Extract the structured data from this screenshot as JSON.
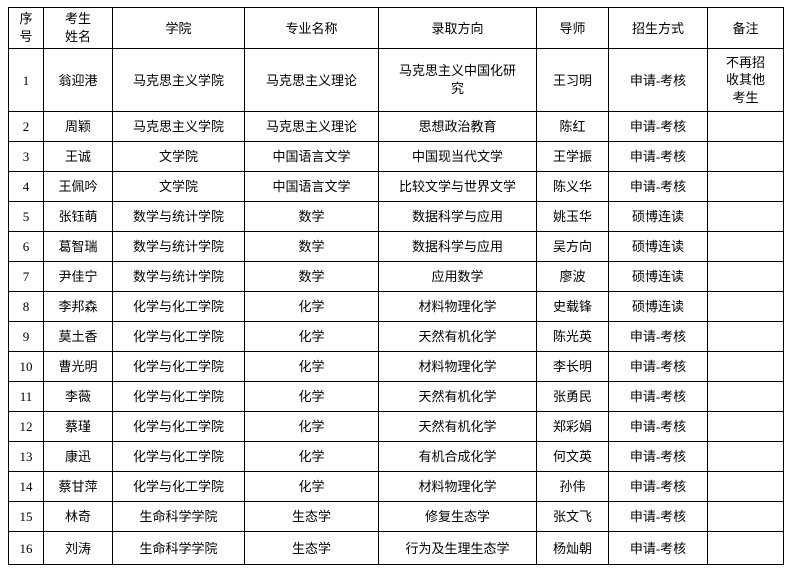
{
  "colors": {
    "background": "#ffffff",
    "border": "#000000",
    "text": "#000000"
  },
  "table": {
    "headers": [
      {
        "key": "no",
        "label": "序号"
      },
      {
        "key": "name",
        "label": "考生姓名"
      },
      {
        "key": "college",
        "label": "学院"
      },
      {
        "key": "major",
        "label": "专业名称"
      },
      {
        "key": "direction",
        "label": "录取方向"
      },
      {
        "key": "advisor",
        "label": "导师"
      },
      {
        "key": "method",
        "label": "招生方式"
      },
      {
        "key": "note",
        "label": "备注"
      }
    ],
    "rows": [
      {
        "no": "1",
        "name": "翁迎港",
        "college": "马克思主义学院",
        "major": "马克思主义理论",
        "direction": "马克思主义中国化研究",
        "advisor": "王习明",
        "method": "申请-考核",
        "note": "不再招收其他考生"
      },
      {
        "no": "2",
        "name": "周颖",
        "college": "马克思主义学院",
        "major": "马克思主义理论",
        "direction": "思想政治教育",
        "advisor": "陈红",
        "method": "申请-考核",
        "note": ""
      },
      {
        "no": "3",
        "name": "王诚",
        "college": "文学院",
        "major": "中国语言文学",
        "direction": "中国现当代文学",
        "advisor": "王学振",
        "method": "申请-考核",
        "note": ""
      },
      {
        "no": "4",
        "name": "王佩吟",
        "college": "文学院",
        "major": "中国语言文学",
        "direction": "比较文学与世界文学",
        "advisor": "陈义华",
        "method": "申请-考核",
        "note": ""
      },
      {
        "no": "5",
        "name": "张钰萌",
        "college": "数学与统计学院",
        "major": "数学",
        "direction": "数据科学与应用",
        "advisor": "姚玉华",
        "method": "硕博连读",
        "note": ""
      },
      {
        "no": "6",
        "name": "葛智瑞",
        "college": "数学与统计学院",
        "major": "数学",
        "direction": "数据科学与应用",
        "advisor": "吴方向",
        "method": "硕博连读",
        "note": ""
      },
      {
        "no": "7",
        "name": "尹佳宁",
        "college": "数学与统计学院",
        "major": "数学",
        "direction": "应用数学",
        "advisor": "廖波",
        "method": "硕博连读",
        "note": ""
      },
      {
        "no": "8",
        "name": "李邦森",
        "college": "化学与化工学院",
        "major": "化学",
        "direction": "材料物理化学",
        "advisor": "史载锋",
        "method": "硕博连读",
        "note": ""
      },
      {
        "no": "9",
        "name": "莫土香",
        "college": "化学与化工学院",
        "major": "化学",
        "direction": "天然有机化学",
        "advisor": "陈光英",
        "method": "申请-考核",
        "note": ""
      },
      {
        "no": "10",
        "name": "曹光明",
        "college": "化学与化工学院",
        "major": "化学",
        "direction": "材料物理化学",
        "advisor": "李长明",
        "method": "申请-考核",
        "note": ""
      },
      {
        "no": "11",
        "name": "李薇",
        "college": "化学与化工学院",
        "major": "化学",
        "direction": "天然有机化学",
        "advisor": "张勇民",
        "method": "申请-考核",
        "note": ""
      },
      {
        "no": "12",
        "name": "蔡瑾",
        "college": "化学与化工学院",
        "major": "化学",
        "direction": "天然有机化学",
        "advisor": "郑彩娟",
        "method": "申请-考核",
        "note": ""
      },
      {
        "no": "13",
        "name": "康迅",
        "college": "化学与化工学院",
        "major": "化学",
        "direction": "有机合成化学",
        "advisor": "何文英",
        "method": "申请-考核",
        "note": ""
      },
      {
        "no": "14",
        "name": "蔡甘萍",
        "college": "化学与化工学院",
        "major": "化学",
        "direction": "材料物理化学",
        "advisor": "孙伟",
        "method": "申请-考核",
        "note": ""
      },
      {
        "no": "15",
        "name": "林奇",
        "college": "生命科学学院",
        "major": "生态学",
        "direction": "修复生态学",
        "advisor": "张文飞",
        "method": "申请-考核",
        "note": ""
      },
      {
        "no": "16",
        "name": "刘涛",
        "college": "生命科学学院",
        "major": "生态学",
        "direction": "行为及生理生态学",
        "advisor": "杨灿朝",
        "method": "申请-考核",
        "note": ""
      }
    ]
  }
}
